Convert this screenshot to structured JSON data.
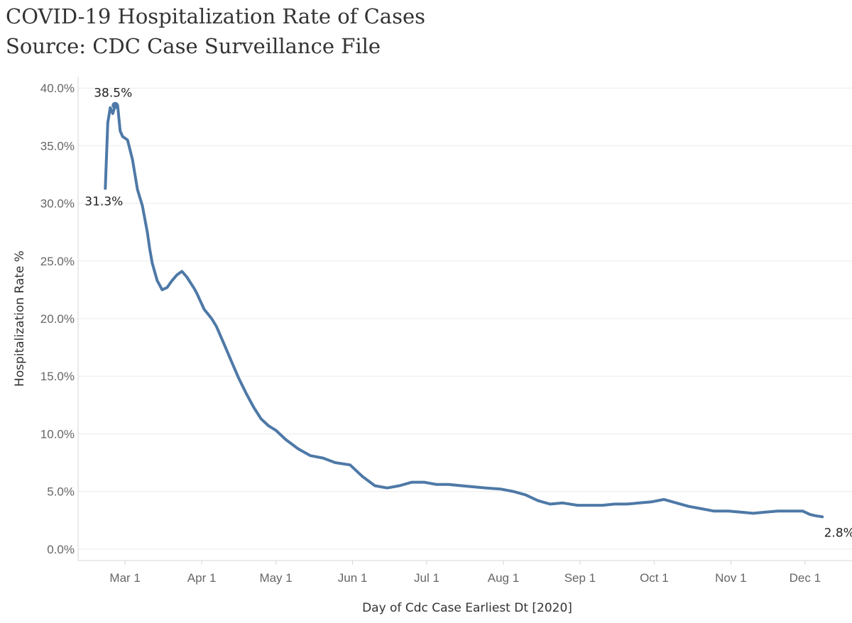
{
  "chart_data": {
    "type": "line",
    "title": "COVID-19 Hospitalization Rate of Cases",
    "subtitle": "Source: CDC Case Surveillance File",
    "xlabel": "Day of Cdc Case Earliest Dt [2020]",
    "ylabel": "Hospitalization Rate %",
    "xlim": [
      "2020-02-11",
      "2020-12-20"
    ],
    "ylim": [
      -1.0,
      41.0
    ],
    "x_ticks": [
      {
        "date": "2020-03-01",
        "label": "Mar 1"
      },
      {
        "date": "2020-04-01",
        "label": "Apr 1"
      },
      {
        "date": "2020-05-01",
        "label": "May 1"
      },
      {
        "date": "2020-06-01",
        "label": "Jun 1"
      },
      {
        "date": "2020-07-01",
        "label": "Jul 1"
      },
      {
        "date": "2020-08-01",
        "label": "Aug 1"
      },
      {
        "date": "2020-09-01",
        "label": "Sep 1"
      },
      {
        "date": "2020-10-01",
        "label": "Oct 1"
      },
      {
        "date": "2020-11-01",
        "label": "Nov 1"
      },
      {
        "date": "2020-12-01",
        "label": "Dec 1"
      }
    ],
    "y_ticks": [
      {
        "value": 0,
        "label": "0.0%"
      },
      {
        "value": 5,
        "label": "5.0%"
      },
      {
        "value": 10,
        "label": "10.0%"
      },
      {
        "value": 15,
        "label": "15.0%"
      },
      {
        "value": 20,
        "label": "20.0%"
      },
      {
        "value": 25,
        "label": "25.0%"
      },
      {
        "value": 30,
        "label": "30.0%"
      },
      {
        "value": 35,
        "label": "35.0%"
      },
      {
        "value": 40,
        "label": "40.0%"
      }
    ],
    "grid": "horizontal",
    "line_color": "#4e79a7",
    "series": [
      {
        "x": [
          "2020-02-22",
          "2020-02-23",
          "2020-02-24",
          "2020-02-25",
          "2020-02-26",
          "2020-02-27",
          "2020-02-28",
          "2020-02-29",
          "2020-03-02",
          "2020-03-04",
          "2020-03-06",
          "2020-03-08",
          "2020-03-10",
          "2020-03-11",
          "2020-03-12",
          "2020-03-14",
          "2020-03-16",
          "2020-03-18",
          "2020-03-20",
          "2020-03-22",
          "2020-03-24",
          "2020-03-26",
          "2020-03-29",
          "2020-03-30",
          "2020-04-02",
          "2020-04-05",
          "2020-04-07",
          "2020-04-10",
          "2020-04-13",
          "2020-04-16",
          "2020-04-19",
          "2020-04-22",
          "2020-04-25",
          "2020-04-28",
          "2020-05-01",
          "2020-05-05",
          "2020-05-10",
          "2020-05-15",
          "2020-05-20",
          "2020-05-25",
          "2020-05-31",
          "2020-06-05",
          "2020-06-10",
          "2020-06-15",
          "2020-06-20",
          "2020-06-25",
          "2020-06-30",
          "2020-07-05",
          "2020-07-10",
          "2020-07-15",
          "2020-07-20",
          "2020-07-25",
          "2020-07-31",
          "2020-08-05",
          "2020-08-10",
          "2020-08-15",
          "2020-08-20",
          "2020-08-25",
          "2020-08-31",
          "2020-09-05",
          "2020-09-10",
          "2020-09-15",
          "2020-09-20",
          "2020-09-25",
          "2020-09-30",
          "2020-10-05",
          "2020-10-10",
          "2020-10-15",
          "2020-10-20",
          "2020-10-25",
          "2020-10-31",
          "2020-11-05",
          "2020-11-10",
          "2020-11-15",
          "2020-11-20",
          "2020-11-25",
          "2020-11-30",
          "2020-12-03",
          "2020-12-05",
          "2020-12-08"
        ],
        "values": [
          31.3,
          37.0,
          38.3,
          37.8,
          38.5,
          38.5,
          36.3,
          35.8,
          35.5,
          33.8,
          31.2,
          29.8,
          27.5,
          26.0,
          24.8,
          23.3,
          22.5,
          22.7,
          23.3,
          23.8,
          24.1,
          23.6,
          22.6,
          22.2,
          20.8,
          20.0,
          19.3,
          17.8,
          16.3,
          14.8,
          13.5,
          12.3,
          11.3,
          10.7,
          10.3,
          9.5,
          8.7,
          8.1,
          7.9,
          7.5,
          7.3,
          6.3,
          5.5,
          5.3,
          5.5,
          5.8,
          5.8,
          5.6,
          5.6,
          5.5,
          5.4,
          5.3,
          5.2,
          5.0,
          4.7,
          4.2,
          3.9,
          4.0,
          3.8,
          3.8,
          3.8,
          3.9,
          3.9,
          4.0,
          4.1,
          4.3,
          4.0,
          3.7,
          3.5,
          3.3,
          3.3,
          3.2,
          3.1,
          3.2,
          3.3,
          3.3,
          3.3,
          3.0,
          2.9,
          2.8
        ]
      }
    ],
    "annotations": [
      {
        "date": "2020-02-22",
        "value": 31.3,
        "label": "31.3%"
      },
      {
        "date": "2020-02-26",
        "value": 38.5,
        "label": "38.5%"
      },
      {
        "date": "2020-12-08",
        "value": 2.8,
        "label": "2.8%"
      }
    ]
  }
}
